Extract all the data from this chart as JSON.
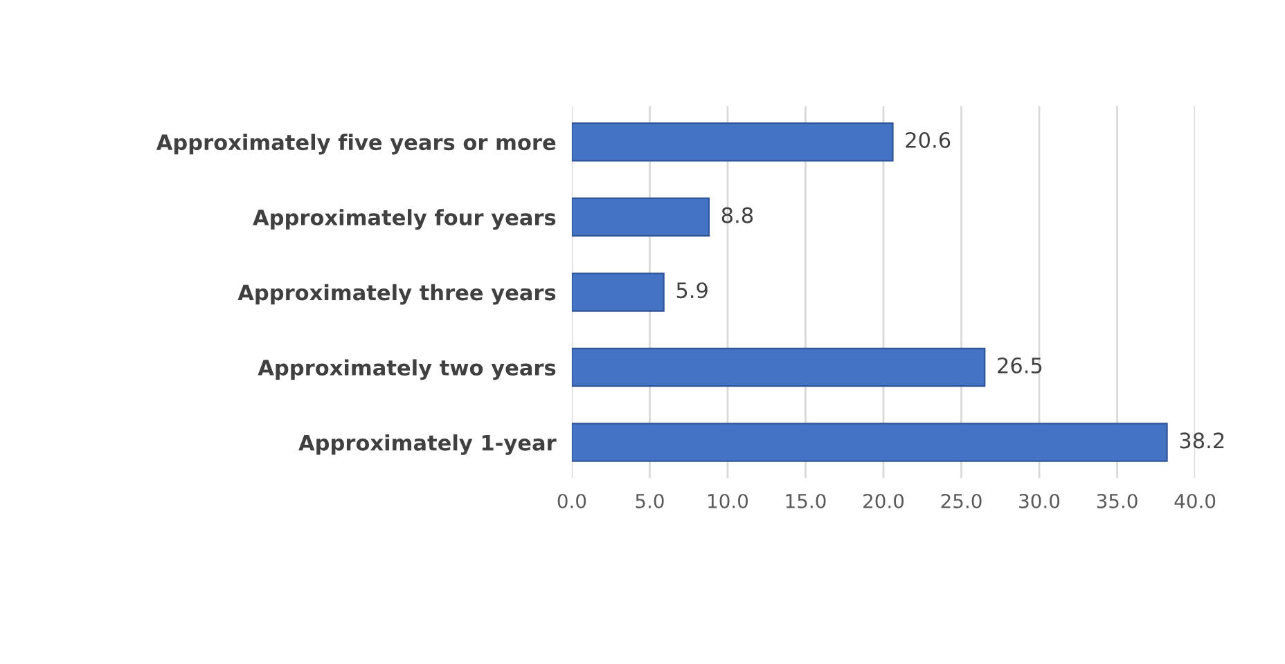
{
  "chart_data": {
    "type": "bar",
    "orientation": "horizontal",
    "categories": [
      "Approximately five years or more",
      "Approximately four years",
      "Approximately three years",
      "Approximately two years",
      "Approximately 1-year"
    ],
    "values": [
      20.6,
      8.8,
      5.9,
      26.5,
      38.2
    ],
    "color": "#4472c4",
    "xlim": [
      0,
      40
    ],
    "xticks": [
      {
        "value": 0,
        "label": "0.0"
      },
      {
        "value": 5,
        "label": "5.0"
      },
      {
        "value": 10,
        "label": "10.0"
      },
      {
        "value": 15,
        "label": "15.0"
      },
      {
        "value": 20,
        "label": "20.0"
      },
      {
        "value": 25,
        "label": "25.0"
      },
      {
        "value": 30,
        "label": "30.0"
      },
      {
        "value": 35,
        "label": "35.0"
      },
      {
        "value": 40,
        "label": "40.0"
      }
    ],
    "grid": "x",
    "data_labels": true
  }
}
